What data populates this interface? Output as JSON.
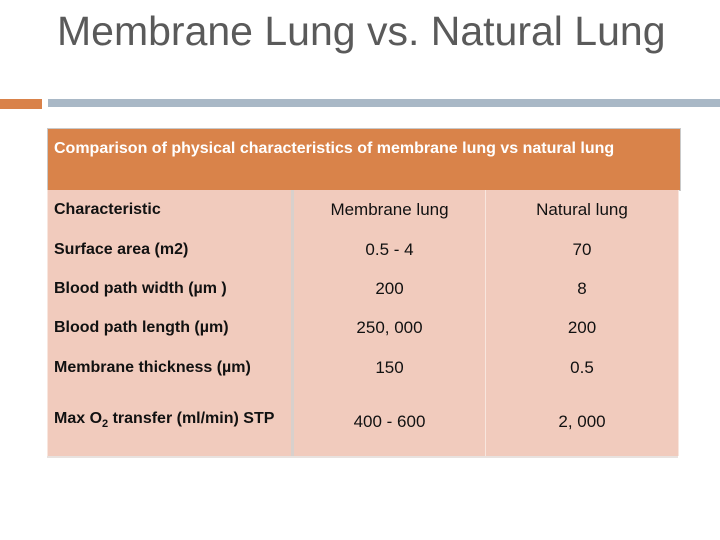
{
  "slide": {
    "title": "Membrane Lung vs. Natural Lung",
    "caption": "Comparison of physical characteristics of membrane lung vs natural lung"
  },
  "table": {
    "header": {
      "characteristic": "Characteristic",
      "membrane": "Membrane lung",
      "natural": "Natural lung"
    },
    "rows": [
      {
        "label": "Surface area (m2)",
        "membrane": "0.5 - 4",
        "natural": "70"
      },
      {
        "label": "Blood path width (µm )",
        "membrane": "200",
        "natural": "8"
      },
      {
        "label": "Blood path length (µm)",
        "membrane": "250, 000",
        "natural": "200"
      },
      {
        "label": "Membrane thickness (µm)",
        "membrane": "150",
        "natural": "0.5"
      },
      {
        "label_prefix": "Max O",
        "label_sub": "2",
        "label_suffix": " transfer (ml/min) STP",
        "membrane": "400 - 600",
        "natural": "2, 000"
      }
    ]
  },
  "colors": {
    "accent": "#d9834a",
    "cell": "#f1cbbd",
    "rule": "#a9b8c6",
    "title_text": "#5a5a5a"
  }
}
